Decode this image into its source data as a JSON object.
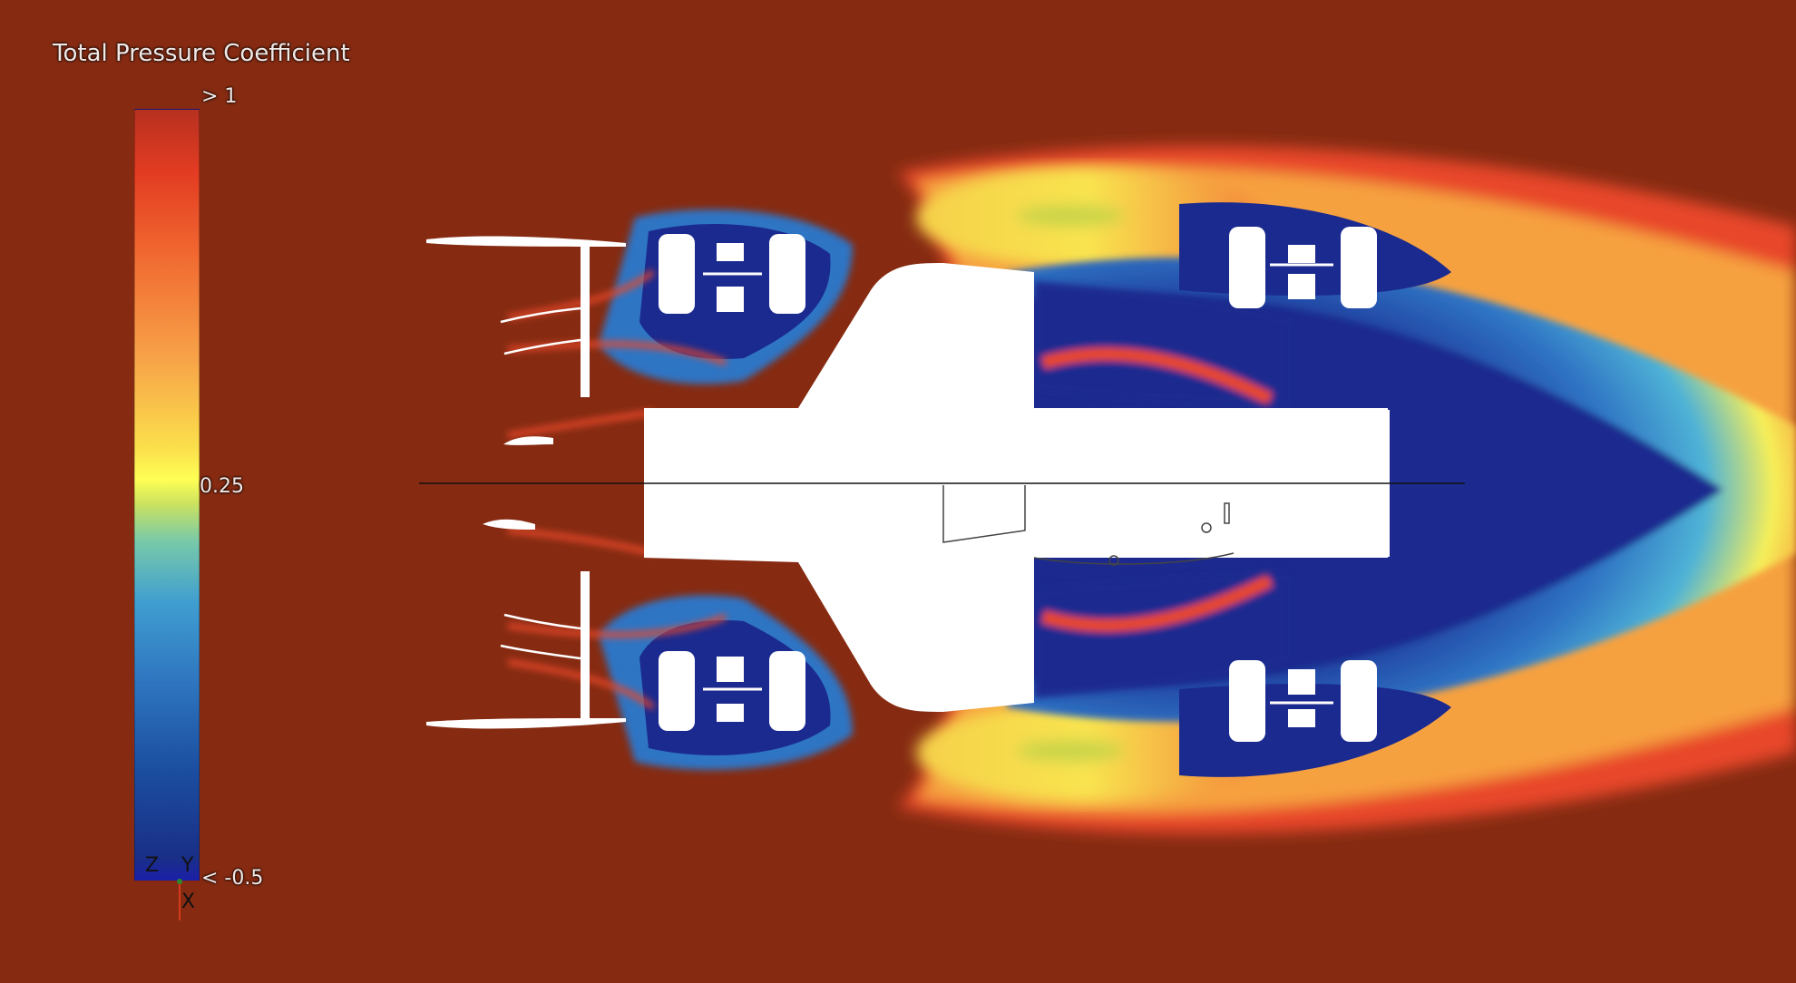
{
  "legend": {
    "title": "Total Pressure Coefficient",
    "max_label": "> 1",
    "mid_label": "0.25",
    "min_label": "< -0.5",
    "range": [
      -0.5,
      1.0
    ]
  },
  "axes_triad": {
    "z": "Z",
    "y": "Y",
    "x": "X"
  },
  "colors": {
    "background": "#862b12",
    "freestream": "#862b12",
    "wake_core": "#1b2a8f",
    "wake_mid": "#3fa0d0",
    "wake_edge": "#ffe34a",
    "shear_layer": "#e8462a",
    "body": "#ffffff"
  }
}
